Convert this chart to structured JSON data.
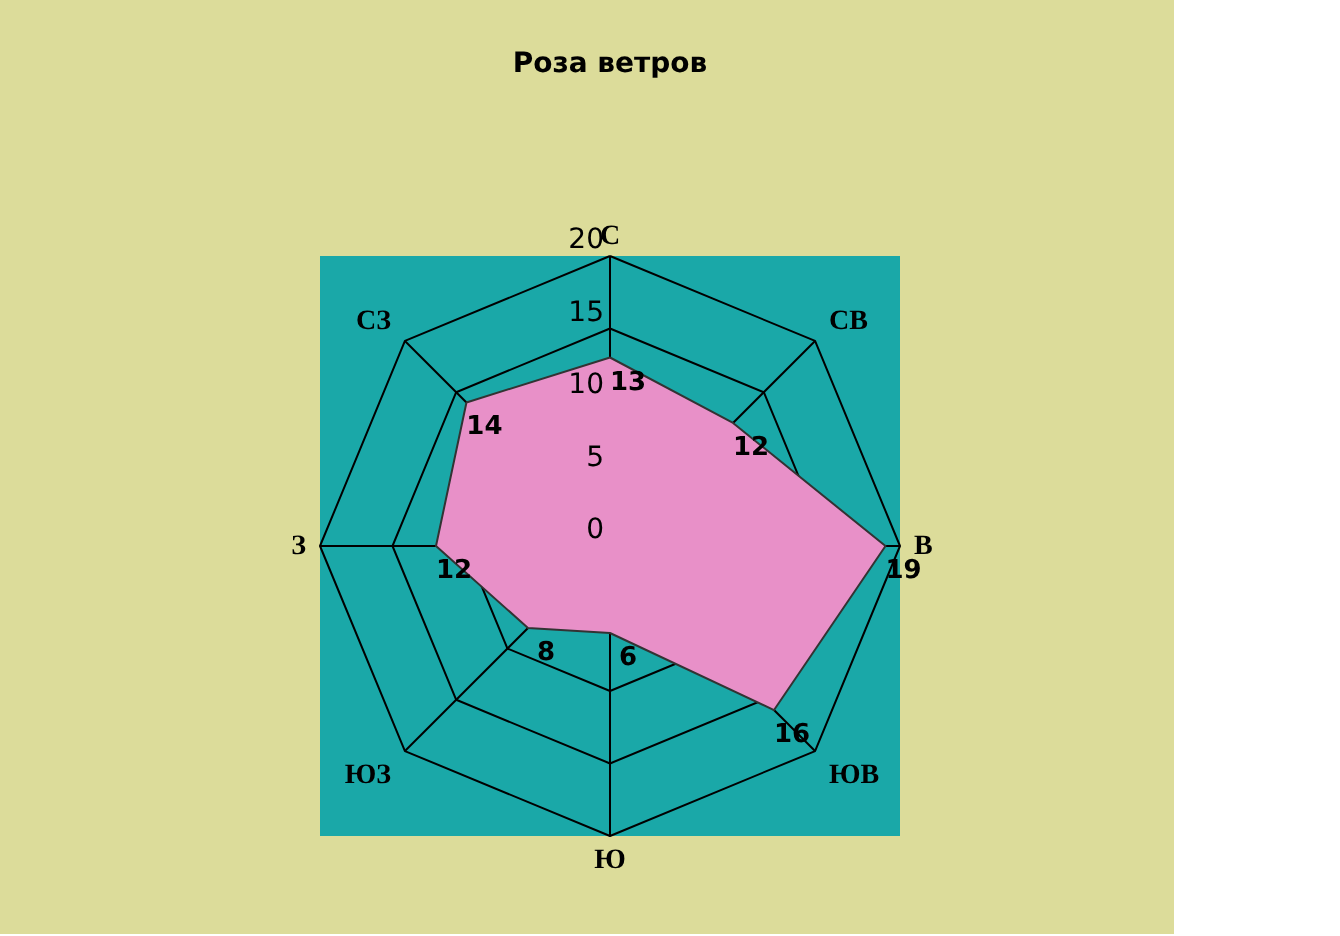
{
  "chart_data": {
    "type": "radar",
    "title": "Роза ветров",
    "categories": [
      "С",
      "СВ",
      "В",
      "ЮВ",
      "Ю",
      "ЮЗ",
      "З",
      "СЗ"
    ],
    "series": [
      {
        "color": "#e890c8",
        "values": [
          13,
          12,
          19,
          16,
          6,
          8,
          12,
          14
        ]
      }
    ],
    "ylim": [
      0,
      20
    ],
    "yticks": [
      0,
      5,
      10,
      15,
      20
    ],
    "grid": true,
    "data_labels": true
  }
}
